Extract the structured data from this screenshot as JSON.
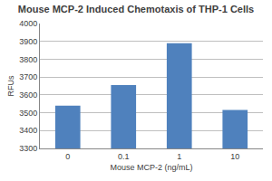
{
  "chart_data": {
    "type": "bar",
    "title": "Mouse MCP-2 Induced Chemotaxis of THP-1 Cells",
    "x_label": "Mouse MCP-2 (ng/mL)",
    "y_label": "RFUs",
    "categories": [
      "0",
      "0.1",
      "1",
      "10"
    ],
    "values": [
      3540,
      3655,
      3890,
      3515
    ],
    "color": "#4f81bd",
    "ylim": [
      3300,
      4000
    ],
    "yticks": [
      3300,
      3400,
      3500,
      3600,
      3700,
      3800,
      3900,
      4000
    ],
    "grid": true
  }
}
